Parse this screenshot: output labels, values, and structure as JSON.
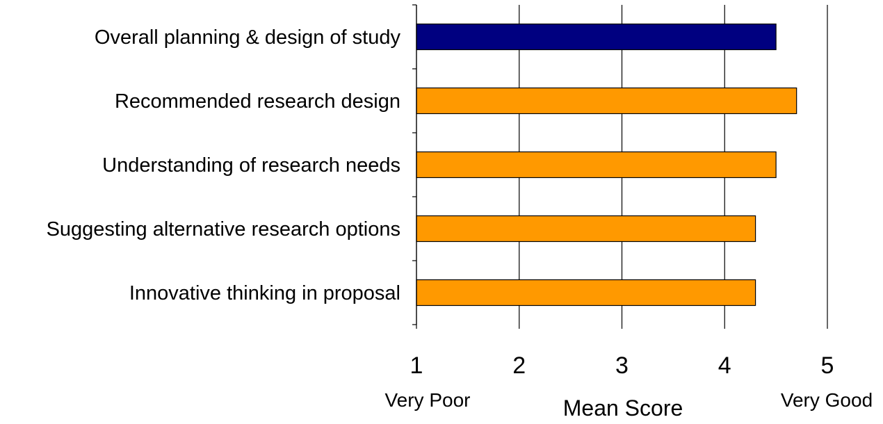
{
  "chart_data": {
    "type": "bar",
    "orientation": "horizontal",
    "categories": [
      "Overall planning & design of study",
      "Recommended research design",
      "Understanding of research needs",
      "Suggesting alternative research options",
      "Innovative thinking in proposal"
    ],
    "values": [
      4.5,
      4.7,
      4.5,
      4.3,
      4.3
    ],
    "bar_colors": [
      "#000080",
      "#FF9900",
      "#FF9900",
      "#FF9900",
      "#FF9900"
    ],
    "xlabel": "Mean Score",
    "xlim": [
      1,
      5
    ],
    "x_ticks": [
      1,
      2,
      3,
      4,
      5
    ],
    "x_tick_labels": [
      "1",
      "2",
      "3",
      "4",
      "5"
    ],
    "x_scale_low_label": "Very Poor",
    "x_scale_high_label": "Very Good",
    "grid": "vertical gridlines",
    "legend": "none"
  }
}
